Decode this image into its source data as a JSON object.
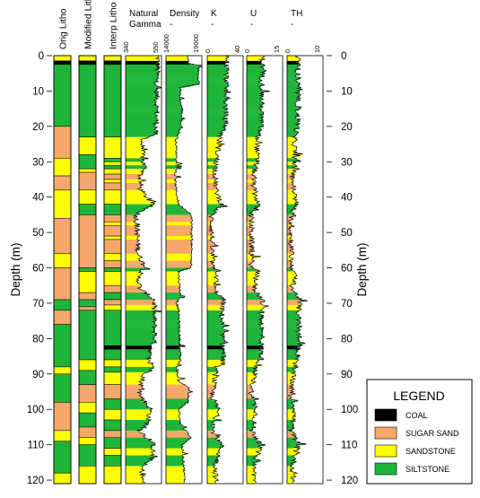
{
  "chart_data": {
    "type": "well-log",
    "depth_axis": {
      "label": "Depth (m)",
      "ticks": [
        0,
        10,
        20,
        30,
        40,
        50,
        60,
        70,
        80,
        90,
        100,
        110,
        120
      ],
      "range": [
        0,
        121
      ]
    },
    "colors": {
      "coal": "#000000",
      "sugar_sand": "#f5a86a",
      "sandstone": "#ffff00",
      "siltstone": "#1fb53a"
    },
    "lithology_tracks": [
      {
        "title": "Orig Litho",
        "intervals": [
          {
            "top": 0,
            "bottom": 1.5,
            "litho": "sandstone"
          },
          {
            "top": 1.5,
            "bottom": 2.5,
            "litho": "coal"
          },
          {
            "top": 2.5,
            "bottom": 20,
            "litho": "siltstone"
          },
          {
            "top": 20,
            "bottom": 29,
            "litho": "sugar_sand"
          },
          {
            "top": 29,
            "bottom": 34,
            "litho": "sandstone"
          },
          {
            "top": 34,
            "bottom": 38,
            "litho": "sugar_sand"
          },
          {
            "top": 38,
            "bottom": 46,
            "litho": "sandstone"
          },
          {
            "top": 46,
            "bottom": 56,
            "litho": "sugar_sand"
          },
          {
            "top": 56,
            "bottom": 60,
            "litho": "sandstone"
          },
          {
            "top": 60,
            "bottom": 69,
            "litho": "sugar_sand"
          },
          {
            "top": 69,
            "bottom": 72,
            "litho": "siltstone"
          },
          {
            "top": 72,
            "bottom": 76,
            "litho": "sugar_sand"
          },
          {
            "top": 76,
            "bottom": 88,
            "litho": "siltstone"
          },
          {
            "top": 88,
            "bottom": 90,
            "litho": "sandstone"
          },
          {
            "top": 90,
            "bottom": 98,
            "litho": "siltstone"
          },
          {
            "top": 98,
            "bottom": 106,
            "litho": "sugar_sand"
          },
          {
            "top": 106,
            "bottom": 109,
            "litho": "sandstone"
          },
          {
            "top": 109,
            "bottom": 118,
            "litho": "siltstone"
          },
          {
            "top": 118,
            "bottom": 121,
            "litho": "sandstone"
          }
        ]
      },
      {
        "title": "Modified Litho",
        "intervals": [
          {
            "top": 0,
            "bottom": 1.5,
            "litho": "sandstone"
          },
          {
            "top": 1.5,
            "bottom": 2.5,
            "litho": "coal"
          },
          {
            "top": 2.5,
            "bottom": 23,
            "litho": "siltstone"
          },
          {
            "top": 23,
            "bottom": 28,
            "litho": "sandstone"
          },
          {
            "top": 28,
            "bottom": 32,
            "litho": "siltstone"
          },
          {
            "top": 32,
            "bottom": 33,
            "litho": "sandstone"
          },
          {
            "top": 33,
            "bottom": 38,
            "litho": "sugar_sand"
          },
          {
            "top": 38,
            "bottom": 42,
            "litho": "sandstone"
          },
          {
            "top": 42,
            "bottom": 45,
            "litho": "siltstone"
          },
          {
            "top": 45,
            "bottom": 60,
            "litho": "sugar_sand"
          },
          {
            "top": 60,
            "bottom": 61,
            "litho": "siltstone"
          },
          {
            "top": 61,
            "bottom": 67,
            "litho": "sandstone"
          },
          {
            "top": 67,
            "bottom": 69,
            "litho": "sugar_sand"
          },
          {
            "top": 69,
            "bottom": 71,
            "litho": "siltstone"
          },
          {
            "top": 71,
            "bottom": 72,
            "litho": "sugar_sand"
          },
          {
            "top": 72,
            "bottom": 86,
            "litho": "siltstone"
          },
          {
            "top": 86,
            "bottom": 89,
            "litho": "sandstone"
          },
          {
            "top": 89,
            "bottom": 93,
            "litho": "siltstone"
          },
          {
            "top": 93,
            "bottom": 98,
            "litho": "sugar_sand"
          },
          {
            "top": 98,
            "bottom": 101,
            "litho": "sandstone"
          },
          {
            "top": 101,
            "bottom": 105,
            "litho": "siltstone"
          },
          {
            "top": 105,
            "bottom": 108,
            "litho": "sugar_sand"
          },
          {
            "top": 108,
            "bottom": 110,
            "litho": "sandstone"
          },
          {
            "top": 110,
            "bottom": 116,
            "litho": "siltstone"
          },
          {
            "top": 116,
            "bottom": 121,
            "litho": "sandstone"
          }
        ]
      },
      {
        "title": "Interp Litho",
        "intervals": [
          {
            "top": 0,
            "bottom": 1.5,
            "litho": "sandstone"
          },
          {
            "top": 1.5,
            "bottom": 2.5,
            "litho": "coal"
          },
          {
            "top": 2.5,
            "bottom": 23,
            "litho": "siltstone"
          },
          {
            "top": 23,
            "bottom": 29,
            "litho": "sandstone"
          },
          {
            "top": 29,
            "bottom": 30,
            "litho": "siltstone"
          },
          {
            "top": 30,
            "bottom": 31,
            "litho": "sandstone"
          },
          {
            "top": 31,
            "bottom": 32,
            "litho": "siltstone"
          },
          {
            "top": 32,
            "bottom": 33.5,
            "litho": "sandstone"
          },
          {
            "top": 33.5,
            "bottom": 35,
            "litho": "sugar_sand"
          },
          {
            "top": 35,
            "bottom": 36,
            "litho": "sandstone"
          },
          {
            "top": 36,
            "bottom": 38,
            "litho": "sugar_sand"
          },
          {
            "top": 38,
            "bottom": 42,
            "litho": "sandstone"
          },
          {
            "top": 42,
            "bottom": 45,
            "litho": "siltstone"
          },
          {
            "top": 45,
            "bottom": 47,
            "litho": "sugar_sand"
          },
          {
            "top": 47,
            "bottom": 48,
            "litho": "sandstone"
          },
          {
            "top": 48,
            "bottom": 51,
            "litho": "sugar_sand"
          },
          {
            "top": 51,
            "bottom": 52,
            "litho": "sandstone"
          },
          {
            "top": 52,
            "bottom": 56,
            "litho": "sugar_sand"
          },
          {
            "top": 56,
            "bottom": 58,
            "litho": "sandstone"
          },
          {
            "top": 58,
            "bottom": 60,
            "litho": "sugar_sand"
          },
          {
            "top": 60,
            "bottom": 61,
            "litho": "siltstone"
          },
          {
            "top": 61,
            "bottom": 65,
            "litho": "sandstone"
          },
          {
            "top": 65,
            "bottom": 67,
            "litho": "sugar_sand"
          },
          {
            "top": 67,
            "bottom": 69,
            "litho": "siltstone"
          },
          {
            "top": 69,
            "bottom": 70.5,
            "litho": "sugar_sand"
          },
          {
            "top": 70.5,
            "bottom": 72,
            "litho": "sandstone"
          },
          {
            "top": 72,
            "bottom": 82,
            "litho": "siltstone"
          },
          {
            "top": 82,
            "bottom": 83,
            "litho": "coal"
          },
          {
            "top": 83,
            "bottom": 86,
            "litho": "siltstone"
          },
          {
            "top": 86,
            "bottom": 88,
            "litho": "sandstone"
          },
          {
            "top": 88,
            "bottom": 89.5,
            "litho": "siltstone"
          },
          {
            "top": 89.5,
            "bottom": 93,
            "litho": "sandstone"
          },
          {
            "top": 93,
            "bottom": 97,
            "litho": "sugar_sand"
          },
          {
            "top": 97,
            "bottom": 100,
            "litho": "siltstone"
          },
          {
            "top": 100,
            "bottom": 103,
            "litho": "sandstone"
          },
          {
            "top": 103,
            "bottom": 106,
            "litho": "siltstone"
          },
          {
            "top": 106,
            "bottom": 108,
            "litho": "sugar_sand"
          },
          {
            "top": 108,
            "bottom": 111,
            "litho": "siltstone"
          },
          {
            "top": 111,
            "bottom": 113,
            "litho": "sandstone"
          },
          {
            "top": 113,
            "bottom": 116,
            "litho": "siltstone"
          },
          {
            "top": 116,
            "bottom": 121,
            "litho": "sandstone"
          }
        ]
      }
    ],
    "log_tracks": [
      {
        "title_lines": [
          "Natural",
          "Gamma"
        ],
        "scale_labels": [
          "340",
          "550"
        ],
        "profile": [
          [
            0,
            90
          ],
          [
            5,
            88
          ],
          [
            10,
            86
          ],
          [
            15,
            87
          ],
          [
            20,
            85
          ],
          [
            22,
            82
          ],
          [
            24,
            45
          ],
          [
            30,
            48
          ],
          [
            32,
            55
          ],
          [
            34,
            40
          ],
          [
            38,
            42
          ],
          [
            42,
            75
          ],
          [
            45,
            30
          ],
          [
            50,
            32
          ],
          [
            56,
            35
          ],
          [
            60,
            55
          ],
          [
            62,
            35
          ],
          [
            66,
            40
          ],
          [
            69,
            80
          ],
          [
            72,
            78
          ],
          [
            80,
            82
          ],
          [
            86,
            60
          ],
          [
            88,
            80
          ],
          [
            90,
            55
          ],
          [
            92,
            45
          ],
          [
            96,
            40
          ],
          [
            100,
            70
          ],
          [
            104,
            60
          ],
          [
            106,
            40
          ],
          [
            110,
            78
          ],
          [
            114,
            72
          ],
          [
            116,
            45
          ],
          [
            121,
            48
          ]
        ]
      },
      {
        "title_lines": [
          "Density",
          "-"
        ],
        "scale_labels": [
          "14000",
          "19000"
        ],
        "profile": [
          [
            0,
            60
          ],
          [
            2,
            62
          ],
          [
            3,
            90
          ],
          [
            8,
            92
          ],
          [
            9,
            40
          ],
          [
            12,
            38
          ],
          [
            15,
            45
          ],
          [
            20,
            42
          ],
          [
            24,
            28
          ],
          [
            30,
            30
          ],
          [
            34,
            25
          ],
          [
            38,
            28
          ],
          [
            42,
            35
          ],
          [
            45,
            72
          ],
          [
            60,
            70
          ],
          [
            61,
            35
          ],
          [
            68,
            40
          ],
          [
            70,
            30
          ],
          [
            72,
            35
          ],
          [
            86,
            40
          ],
          [
            88,
            30
          ],
          [
            92,
            35
          ],
          [
            94,
            65
          ],
          [
            98,
            60
          ],
          [
            100,
            35
          ],
          [
            104,
            40
          ],
          [
            108,
            70
          ],
          [
            110,
            45
          ],
          [
            116,
            50
          ],
          [
            121,
            52
          ]
        ]
      },
      {
        "title_lines": [
          "K",
          "-"
        ],
        "scale_labels": [
          "0",
          "40"
        ],
        "profile": [
          [
            0,
            55
          ],
          [
            10,
            52
          ],
          [
            20,
            50
          ],
          [
            23,
            35
          ],
          [
            30,
            25
          ],
          [
            34,
            22
          ],
          [
            38,
            24
          ],
          [
            42,
            40
          ],
          [
            45,
            12
          ],
          [
            60,
            14
          ],
          [
            61,
            30
          ],
          [
            66,
            18
          ],
          [
            69,
            45
          ],
          [
            72,
            40
          ],
          [
            86,
            45
          ],
          [
            88,
            25
          ],
          [
            92,
            20
          ],
          [
            96,
            12
          ],
          [
            100,
            30
          ],
          [
            106,
            15
          ],
          [
            110,
            40
          ],
          [
            116,
            22
          ],
          [
            121,
            24
          ]
        ]
      },
      {
        "title_lines": [
          "U",
          "-"
        ],
        "scale_labels": [
          "0",
          "15"
        ],
        "profile": [
          [
            0,
            45
          ],
          [
            10,
            42
          ],
          [
            20,
            40
          ],
          [
            23,
            30
          ],
          [
            30,
            28
          ],
          [
            34,
            18
          ],
          [
            38,
            20
          ],
          [
            42,
            32
          ],
          [
            45,
            12
          ],
          [
            60,
            14
          ],
          [
            61,
            30
          ],
          [
            66,
            20
          ],
          [
            69,
            45
          ],
          [
            72,
            42
          ],
          [
            86,
            40
          ],
          [
            88,
            22
          ],
          [
            92,
            18
          ],
          [
            96,
            12
          ],
          [
            100,
            28
          ],
          [
            106,
            15
          ],
          [
            110,
            38
          ],
          [
            116,
            20
          ],
          [
            121,
            22
          ]
        ]
      },
      {
        "title_lines": [
          "TH",
          "-"
        ],
        "scale_labels": [
          "0",
          "10"
        ],
        "profile": [
          [
            0,
            30
          ],
          [
            10,
            28
          ],
          [
            20,
            30
          ],
          [
            23,
            20
          ],
          [
            30,
            22
          ],
          [
            34,
            15
          ],
          [
            38,
            18
          ],
          [
            42,
            25
          ],
          [
            45,
            10
          ],
          [
            60,
            12
          ],
          [
            61,
            22
          ],
          [
            66,
            15
          ],
          [
            69,
            35
          ],
          [
            72,
            32
          ],
          [
            86,
            30
          ],
          [
            88,
            18
          ],
          [
            92,
            15
          ],
          [
            96,
            10
          ],
          [
            100,
            22
          ],
          [
            106,
            12
          ],
          [
            110,
            30
          ],
          [
            116,
            15
          ],
          [
            121,
            18
          ]
        ]
      }
    ],
    "legend": {
      "title": "LEGEND",
      "placement": "bottom-right",
      "items": [
        {
          "key": "coal",
          "label": "COAL"
        },
        {
          "key": "sugar_sand",
          "label": "SUGAR SAND"
        },
        {
          "key": "sandstone",
          "label": "SANDSTONE"
        },
        {
          "key": "siltstone",
          "label": "SILTSTONE"
        }
      ]
    }
  }
}
